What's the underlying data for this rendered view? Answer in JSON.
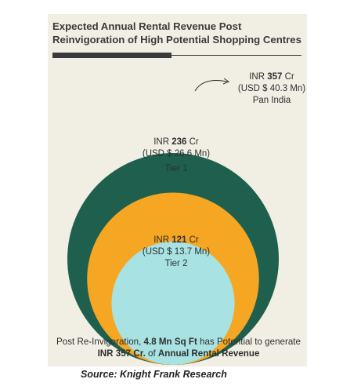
{
  "title": "Expected Annual Rental Revenue Post Reinvigoration of High Potential Shopping Centres",
  "chart_data": {
    "type": "bubble",
    "unit": "INR Cr",
    "series": [
      {
        "name": "Pan India",
        "currency": "INR",
        "value": 357,
        "unit": "Cr",
        "usd_text": "(USD $ 40.3 Mn)",
        "color": "#1e5f4d"
      },
      {
        "name": "Tier 1",
        "currency": "INR",
        "value": 236,
        "unit": "Cr",
        "usd_text": "(USD $ 26.6 Mn)",
        "color": "#f5a623"
      },
      {
        "name": "Tier 2",
        "currency": "INR",
        "value": 121,
        "unit": "Cr",
        "usd_text": "(USD $ 13.7 Mn)",
        "color": "#a8e2e2"
      }
    ]
  },
  "footnote": {
    "p1": "Post Re-Invigoration, ",
    "b1": "4.8 Mn Sq Ft",
    "p2": " has Potential to generate ",
    "b2": "INR 357 Cr.",
    "p3": " of ",
    "b3": "Annual Rental Revenue"
  },
  "source": "Source: Knight Frank Research"
}
